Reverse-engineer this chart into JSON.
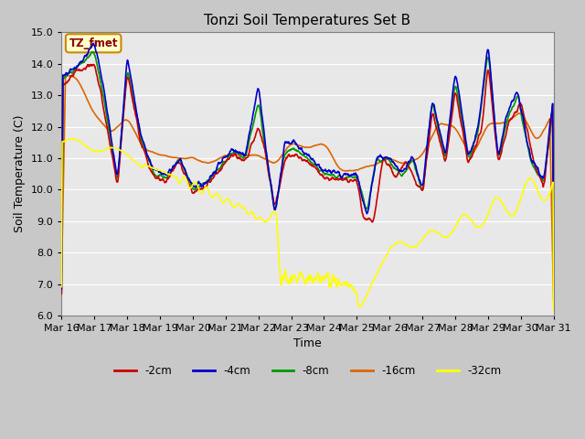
{
  "title": "Tonzi Soil Temperatures Set B",
  "xlabel": "Time",
  "ylabel": "Soil Temperature (C)",
  "ylim": [
    6.0,
    15.0
  ],
  "yticks": [
    6.0,
    7.0,
    8.0,
    9.0,
    10.0,
    11.0,
    12.0,
    13.0,
    14.0,
    15.0
  ],
  "colors": {
    "-2cm": "#cc0000",
    "-4cm": "#0000cc",
    "-8cm": "#009900",
    "-16cm": "#dd6600",
    "-32cm": "#ffff00"
  },
  "legend_label": "TZ_fmet",
  "legend_text_color": "#8b0000",
  "legend_box_fill": "#ffffcc",
  "legend_box_edge": "#cc8800",
  "xtick_labels": [
    "Mar 16",
    "Mar 17",
    "Mar 18",
    "Mar 19",
    "Mar 20",
    "Mar 21",
    "Mar 22",
    "Mar 23",
    "Mar 24",
    "Mar 25",
    "Mar 26",
    "Mar 27",
    "Mar 28",
    "Mar 29",
    "Mar 30",
    "Mar 31"
  ],
  "fig_bg": "#c8c8c8",
  "plot_bg": "#e8e8e8",
  "grid_color": "#ffffff",
  "n_points": 1500
}
